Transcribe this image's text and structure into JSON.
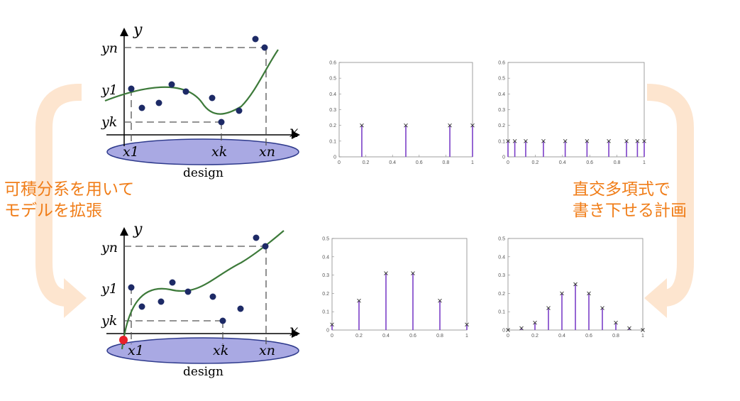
{
  "colors": {
    "arrow": "#fde5cf",
    "caption": "#f07d18",
    "curve": "#3d7a3a",
    "point": "#1d2a66",
    "ellipse_fill": "#a9a9e3",
    "ellipse_stroke": "#2e3a8c",
    "stem": "#7b3fc8",
    "red_point": "#e8202a"
  },
  "captions": {
    "left": [
      "可積分系を用いて",
      "モデルを拡張"
    ],
    "right": [
      "直交多項式で",
      "書き下せる計画"
    ]
  },
  "design_panels": [
    {
      "axis_x": "x",
      "axis_y": "y",
      "y_labels": [
        "yn",
        "y1",
        "yk"
      ],
      "x_labels": [
        "x1",
        "xk",
        "xn"
      ],
      "ellipse_label": "design"
    },
    {
      "axis_x": "x",
      "axis_y": "y",
      "y_labels": [
        "yn",
        "y1",
        "yk"
      ],
      "x_labels": [
        "x1",
        "xk",
        "xn"
      ],
      "ellipse_label": "design"
    }
  ],
  "chart_data": [
    {
      "type": "stem",
      "xlim": [
        0,
        1
      ],
      "ylim": [
        0,
        0.6
      ],
      "xticks": [
        "0",
        "0.2",
        "0.4",
        "0.6",
        "0.8",
        "1"
      ],
      "yticks": [
        "0",
        "0.1",
        "0.2",
        "0.3",
        "0.4",
        "0.5",
        "0.6"
      ],
      "x": [
        0.17,
        0.5,
        0.83,
        1.0
      ],
      "y": [
        0.2,
        0.2,
        0.2,
        0.2
      ]
    },
    {
      "type": "stem",
      "xlim": [
        0,
        1
      ],
      "ylim": [
        0,
        0.6
      ],
      "xticks": [
        "0",
        "0.2",
        "0.4",
        "0.6",
        "0.8",
        "1"
      ],
      "yticks": [
        "0",
        "0.1",
        "0.2",
        "0.3",
        "0.4",
        "0.5",
        "0.6"
      ],
      "x": [
        0.0,
        0.05,
        0.13,
        0.26,
        0.42,
        0.58,
        0.74,
        0.87,
        0.95,
        1.0
      ],
      "y": [
        0.1,
        0.1,
        0.1,
        0.1,
        0.1,
        0.1,
        0.1,
        0.1,
        0.1,
        0.1
      ]
    },
    {
      "type": "stem",
      "xlim": [
        0,
        1
      ],
      "ylim": [
        0,
        0.5
      ],
      "xticks": [
        "0",
        "0.2",
        "0.4",
        "0.6",
        "0.8",
        "1"
      ],
      "yticks": [
        "0",
        "0.1",
        "0.2",
        "0.3",
        "0.4",
        "0.5"
      ],
      "x": [
        0.0,
        0.2,
        0.4,
        0.6,
        0.8,
        1.0
      ],
      "y": [
        0.03,
        0.16,
        0.31,
        0.31,
        0.16,
        0.03
      ]
    },
    {
      "type": "stem",
      "xlim": [
        0,
        1
      ],
      "ylim": [
        0,
        0.5
      ],
      "xticks": [
        "0",
        "0.2",
        "0.4",
        "0.6",
        "0.8",
        "1"
      ],
      "yticks": [
        "0",
        "0.1",
        "0.2",
        "0.3",
        "0.4",
        "0.5"
      ],
      "x": [
        0.0,
        0.1,
        0.2,
        0.3,
        0.4,
        0.5,
        0.6,
        0.7,
        0.8,
        0.9,
        1.0
      ],
      "y": [
        0.0,
        0.01,
        0.04,
        0.12,
        0.2,
        0.25,
        0.2,
        0.12,
        0.04,
        0.01,
        0.0
      ]
    }
  ]
}
